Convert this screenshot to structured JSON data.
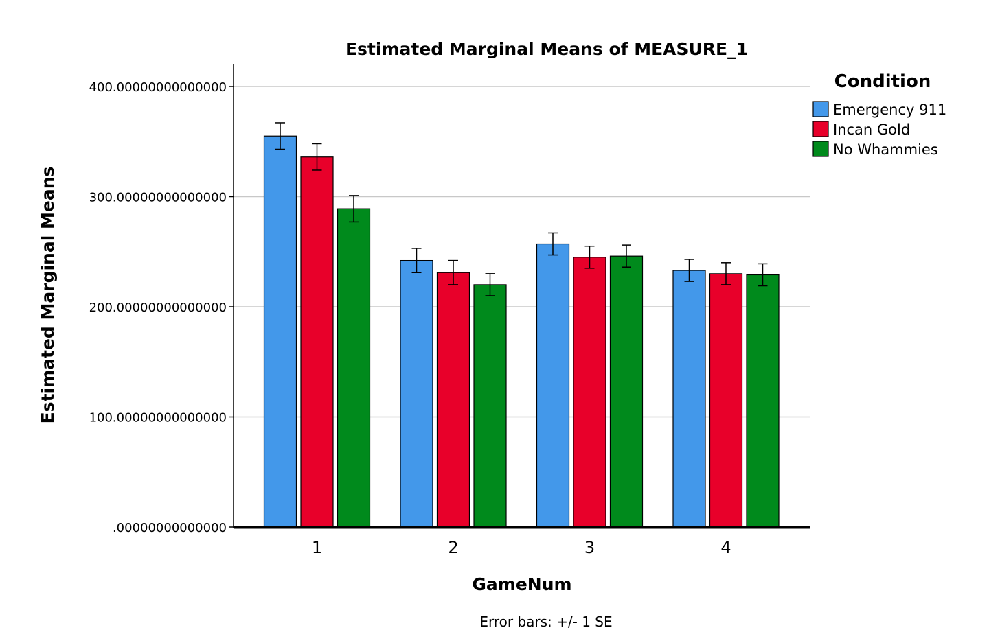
{
  "chart_data": {
    "type": "bar",
    "title": "Estimated Marginal Means of MEASURE_1",
    "xlabel": "GameNum",
    "ylabel": "Estimated Marginal Means",
    "footnote": "Error bars: +/- 1 SE",
    "ylim": [
      0,
      400
    ],
    "yticks": [
      0,
      100,
      200,
      300,
      400
    ],
    "ytick_labels": [
      ".00000000000000",
      "100.00000000000000",
      "200.00000000000000",
      "300.00000000000000",
      "400.00000000000000"
    ],
    "grid": true,
    "categories": [
      "1",
      "2",
      "3",
      "4"
    ],
    "legend": {
      "title": "Condition",
      "position": "right"
    },
    "series": [
      {
        "name": "Emergency 911",
        "color": "#4398EA",
        "values": [
          355,
          242,
          257,
          233
        ],
        "errors": [
          12,
          11,
          10,
          10
        ]
      },
      {
        "name": "Incan Gold",
        "color": "#E8002A",
        "values": [
          336,
          231,
          245,
          230
        ],
        "errors": [
          12,
          11,
          10,
          10
        ]
      },
      {
        "name": "No Whammies",
        "color": "#008A1C",
        "values": [
          289,
          220,
          246,
          229
        ],
        "errors": [
          12,
          10,
          10,
          10
        ]
      }
    ]
  }
}
